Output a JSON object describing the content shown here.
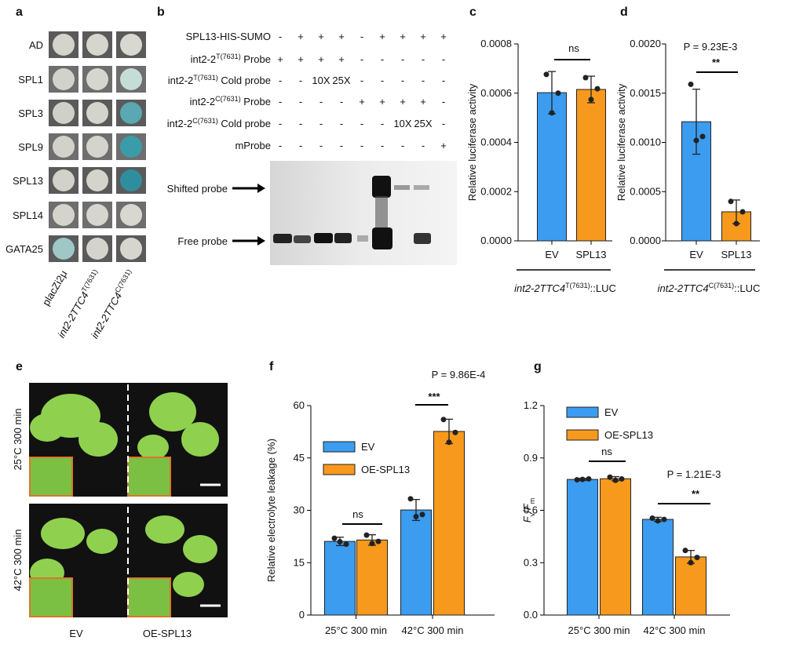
{
  "panels": {
    "a": {
      "label": "a",
      "rows": [
        "AD",
        "SPL1",
        "SPL3",
        "SPL9",
        "SPL13",
        "SPL14",
        "GATA25"
      ],
      "columns": [
        [
          {
            "text": "placZi2μ"
          }
        ],
        [
          {
            "text": "int2-2TTC4",
            "italic": true
          },
          {
            "text": "T(7631)",
            "sup": true
          }
        ],
        [
          {
            "text": "int2-2TTC4",
            "italic": true
          },
          {
            "text": "C(7631)",
            "sup": true
          }
        ]
      ]
    },
    "b": {
      "label": "b",
      "rows": [
        {
          "label": [
            {
              "text": "SPL13-HIS-SUMO"
            }
          ],
          "lanes": [
            "-",
            "+",
            "+",
            "+",
            "-",
            "+",
            "+",
            "+",
            "+"
          ]
        },
        {
          "label": [
            {
              "text": "int2-2"
            },
            {
              "text": "T(7631)",
              "sup": true
            },
            {
              "text": " Probe"
            }
          ],
          "lanes": [
            "+",
            "+",
            "+",
            "+",
            "-",
            "-",
            "-",
            "-",
            "-"
          ]
        },
        {
          "label": [
            {
              "text": "int2-2"
            },
            {
              "text": "T(7631)",
              "sup": true
            },
            {
              "text": " Cold probe"
            }
          ],
          "lanes": [
            "-",
            "-",
            "10X",
            "25X",
            "-",
            "-",
            "-",
            "-",
            "-"
          ]
        },
        {
          "label": [
            {
              "text": "int2-2"
            },
            {
              "text": "C(7631)",
              "sup": true
            },
            {
              "text": " Probe"
            }
          ],
          "lanes": [
            "-",
            "-",
            "-",
            "-",
            "+",
            "+",
            "+",
            "+",
            "-"
          ]
        },
        {
          "label": [
            {
              "text": "int2-2"
            },
            {
              "text": "C(7631)",
              "sup": true
            },
            {
              "text": " Cold probe"
            }
          ],
          "lanes": [
            "-",
            "-",
            "-",
            "-",
            "-",
            "-",
            "10X",
            "25X",
            "-"
          ]
        },
        {
          "label": [
            {
              "text": "mProbe"
            }
          ],
          "lanes": [
            "-",
            "-",
            "-",
            "-",
            "-",
            "-",
            "-",
            "-",
            "+"
          ]
        }
      ],
      "arrows": [
        "Shifted probe",
        "Free probe"
      ]
    },
    "e": {
      "label": "e",
      "conditions": [
        "25°C 300 min",
        "42°C 300 min"
      ],
      "genotypes": [
        "EV",
        "OE-SPL13"
      ]
    }
  },
  "chart_data": [
    {
      "type": "bar",
      "label": "c",
      "categories": [
        "EV",
        "SPL13"
      ],
      "values": [
        0.000602,
        0.000615
      ],
      "errors": [
        8.6e-05,
        5.4e-05
      ],
      "points": [
        [
          0.000676,
          0.0006,
          0.00052
        ],
        [
          0.000663,
          0.000618,
          0.000574
        ]
      ],
      "colors": [
        "#3b9cf0",
        "#f7991c"
      ],
      "ylabel": "Relative luciferase activity",
      "xlabel": [
        {
          "text": "int2-2TTC4",
          "italic": true
        },
        {
          "text": "T(7631)",
          "sup": true
        },
        {
          "text": "::LUC"
        }
      ],
      "ylim": [
        0,
        0.0008
      ],
      "yticks": [
        {
          "value": 0,
          "label": "0.0000"
        },
        {
          "value": 0.0002,
          "label": "0.0002"
        },
        {
          "value": 0.0004,
          "label": "0.0004"
        },
        {
          "value": 0.0006,
          "label": "0.0006"
        },
        {
          "value": 0.0008,
          "label": "0.0008"
        }
      ],
      "annotations": [
        "ns"
      ]
    },
    {
      "type": "bar",
      "label": "d",
      "categories": [
        "EV",
        "SPL13"
      ],
      "values": [
        0.00121,
        0.000295
      ],
      "errors": [
        0.00033,
        0.00012
      ],
      "points": [
        [
          0.00159,
          0.00106,
          0.00102
        ],
        [
          0.0004,
          0.000295,
          0.000175
        ]
      ],
      "colors": [
        "#3b9cf0",
        "#f7991c"
      ],
      "ylabel": "Relative luciferase activity",
      "xlabel": [
        {
          "text": "int2-2TTC4",
          "italic": true
        },
        {
          "text": "C(7631)",
          "sup": true
        },
        {
          "text": "::LUC"
        }
      ],
      "ylim": [
        0,
        0.002
      ],
      "yticks": [
        {
          "value": 0,
          "label": "0.0000"
        },
        {
          "value": 0.0005,
          "label": "0.0005"
        },
        {
          "value": 0.001,
          "label": "0.0010"
        },
        {
          "value": 0.0015,
          "label": "0.0015"
        },
        {
          "value": 0.002,
          "label": "0.0020"
        }
      ],
      "annotations": [
        "P = 9.23E-3",
        "**"
      ]
    },
    {
      "type": "bar",
      "label": "f",
      "categories": [
        "25°C 300 min",
        "42°C 300 min"
      ],
      "series": [
        {
          "name": "EV",
          "color": "#3b9cf0",
          "values": [
            21.1,
            30.1
          ],
          "errors": [
            1.2,
            3.0
          ],
          "points": [
            [
              22,
              20.3,
              21
            ],
            [
              33.3,
              28.8,
              28.2
            ]
          ]
        },
        {
          "name": "OE-SPL13",
          "color": "#f7991c",
          "values": [
            21.5,
            52.6
          ],
          "errors": [
            1.5,
            3.5
          ],
          "points": [
            [
              22.9,
              21.1,
              20.5
            ],
            [
              56,
              52.3,
              49.5
            ]
          ]
        }
      ],
      "ylabel": "Relative electrolyte leakage (%)",
      "ylim": [
        0,
        60
      ],
      "yticks": [
        0,
        15,
        30,
        45,
        60
      ],
      "annotations": [
        "ns",
        "P = 9.86E-4",
        "***"
      ]
    },
    {
      "type": "bar",
      "label": "g",
      "categories": [
        "25°C 300 min",
        "42°C 300 min"
      ],
      "series": [
        {
          "name": "EV",
          "color": "#3b9cf0",
          "values": [
            0.777,
            0.548
          ],
          "errors": [
            0.006,
            0.012
          ],
          "points": [
            [
              0.775,
              0.78,
              0.777
            ],
            [
              0.555,
              0.548,
              0.54
            ]
          ]
        },
        {
          "name": "OE-SPL13",
          "color": "#f7991c",
          "values": [
            0.781,
            0.333
          ],
          "errors": [
            0.012,
            0.037
          ],
          "points": [
            [
              0.79,
              0.78,
              0.772
            ],
            [
              0.37,
              0.33,
              0.3
            ]
          ]
        }
      ],
      "ylabel": [
        {
          "text": "F",
          "italic": true
        },
        {
          "text": "v",
          "sub": true
        },
        {
          "text": "/"
        },
        {
          "text": "F",
          "italic": true
        },
        {
          "text": "m",
          "sub": true
        }
      ],
      "ylim": [
        0,
        1.2
      ],
      "yticks": [
        {
          "value": 0,
          "label": "0.0"
        },
        0.3,
        0.6,
        0.9,
        1.2
      ],
      "annotations": [
        "ns",
        "P = 1.21E-3",
        "**"
      ]
    }
  ]
}
